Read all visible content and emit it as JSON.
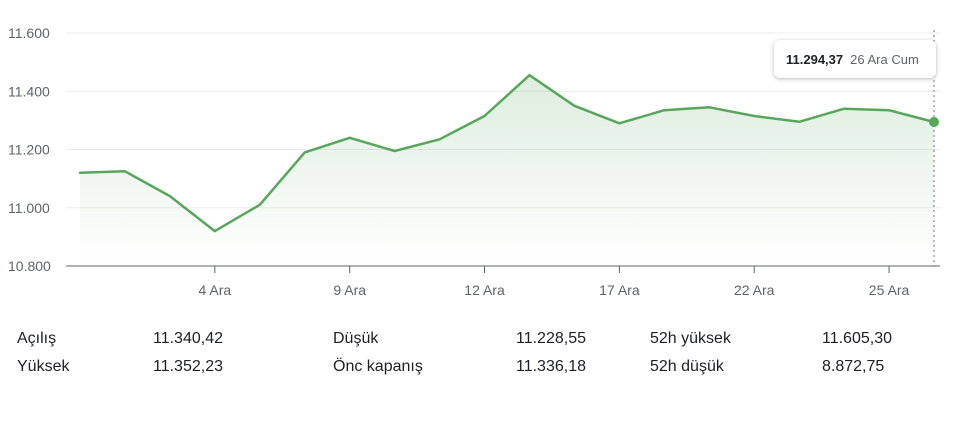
{
  "chart_data": {
    "type": "area",
    "y_ticks": [
      "11.600",
      "11.400",
      "11.200",
      "11.000",
      "10.800"
    ],
    "y_tick_values": [
      11600,
      11400,
      11200,
      11000,
      10800
    ],
    "ylim": [
      10800,
      11650
    ],
    "x_ticks": [
      {
        "label": "4 Ara",
        "index": 3
      },
      {
        "label": "9 Ara",
        "index": 6
      },
      {
        "label": "12 Ara",
        "index": 9
      },
      {
        "label": "17 Ara",
        "index": 12
      },
      {
        "label": "22 Ara",
        "index": 15
      },
      {
        "label": "25 Ara",
        "index": 18
      }
    ],
    "values": [
      11120,
      11125,
      11040,
      10920,
      11010,
      11190,
      11240,
      11195,
      11235,
      11315,
      11455,
      11350,
      11290,
      11335,
      11345,
      11315,
      11295,
      11340,
      11335,
      11294.37
    ],
    "line_color": "#58a65c",
    "grid": true,
    "tooltip": {
      "value": "11.294,37",
      "date": "26 Ara Cum"
    }
  },
  "stats": [
    {
      "label": "Açılış",
      "value": "11.340,42"
    },
    {
      "label": "Yüksek",
      "value": "11.352,23"
    },
    {
      "label": "Düşük",
      "value": "11.228,55"
    },
    {
      "label": "Önc kapanış",
      "value": "11.336,18"
    },
    {
      "label": "52h yüksek",
      "value": "11.605,30"
    },
    {
      "label": "52h düşük",
      "value": "8.872,75"
    }
  ]
}
